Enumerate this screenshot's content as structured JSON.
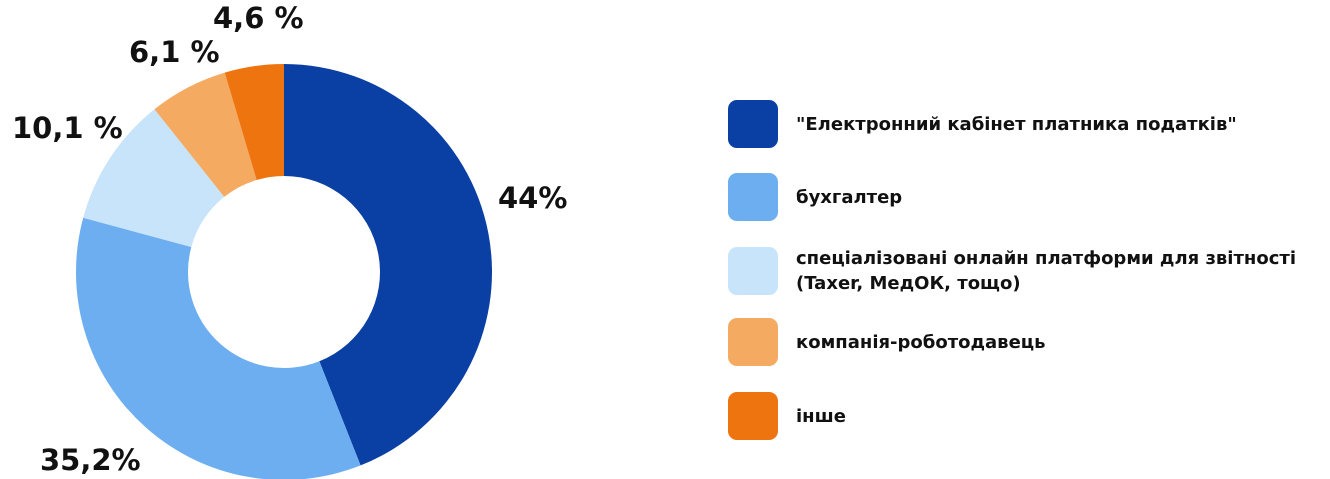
{
  "chart_data": {
    "type": "pie",
    "donut": true,
    "categories": [
      "\"Електронний кабінет платника податків\"",
      "бухгалтер",
      "спеціалізовані онлайн платформи для звітності (Taxer, МедОК, тощо)",
      "компанія-роботодавець",
      "інше"
    ],
    "values": [
      44,
      35.2,
      10.1,
      6.1,
      4.6
    ],
    "value_labels": [
      "44%",
      "35,2%",
      "10,1 %",
      "6,1 %",
      "4,6 %"
    ],
    "colors": [
      "#0a3fa3",
      "#6daef1",
      "#c7e4fb",
      "#f5aa62",
      "#ee7410"
    ],
    "legend_position": "right",
    "title": "",
    "xlabel": "",
    "ylabel": ""
  }
}
